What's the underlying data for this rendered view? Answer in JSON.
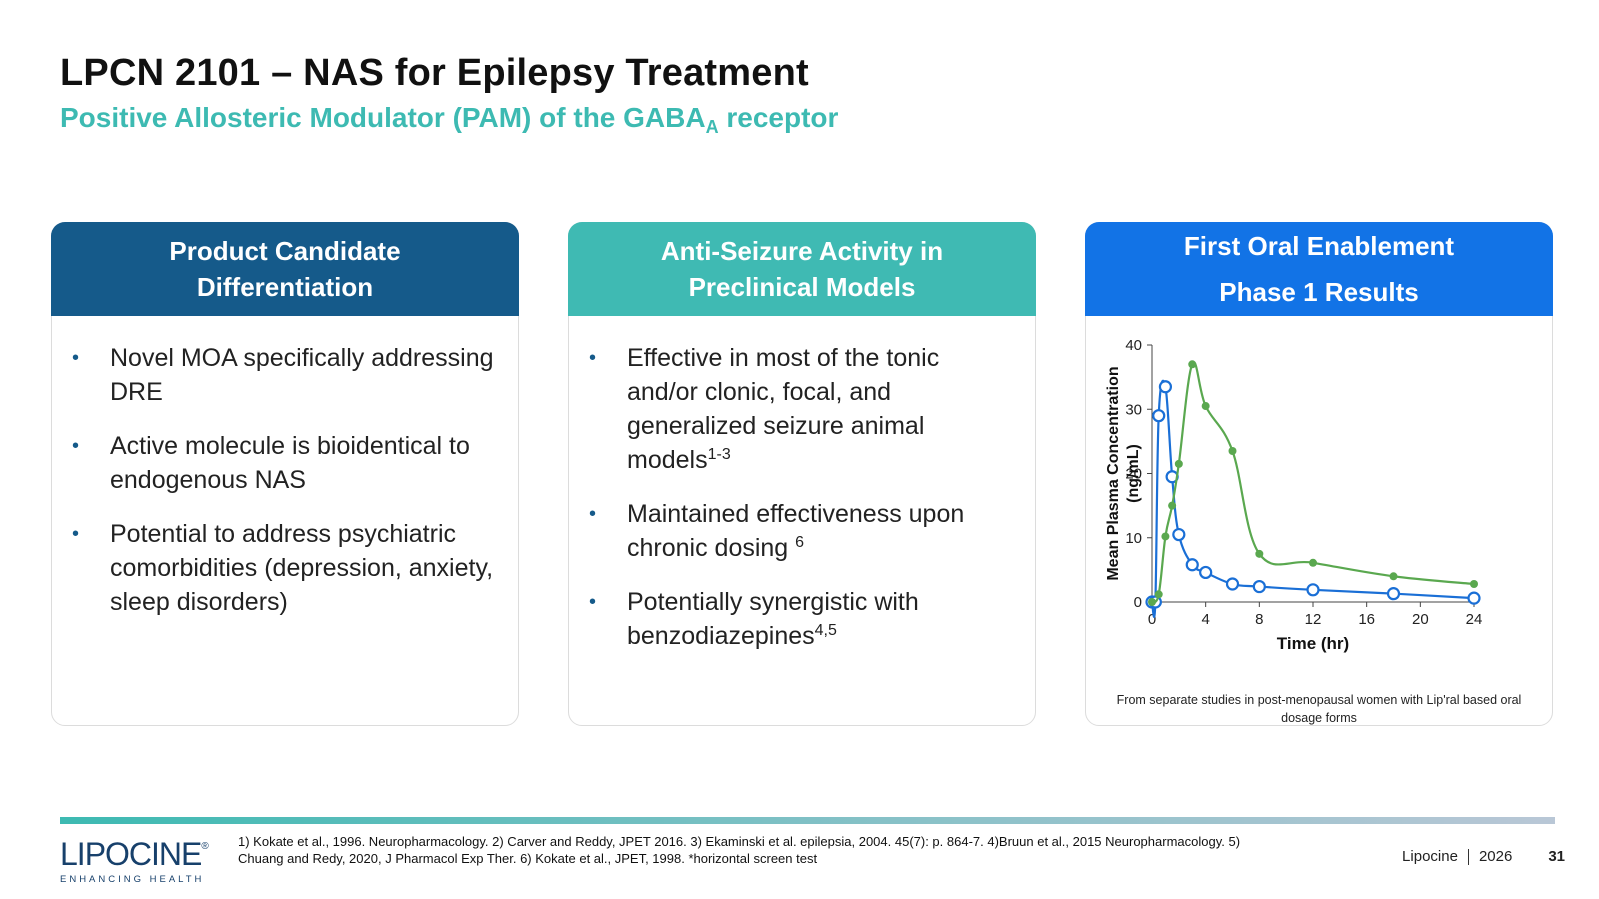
{
  "header": {
    "title": "LPCN 2101 – NAS for Epilepsy Treatment",
    "subtitle_main": "Positive Allosteric Modulator (PAM) of the GABA",
    "subtitle_sub": "A",
    "subtitle_end": " receptor"
  },
  "cards": [
    {
      "head_lines": [
        "Product Candidate",
        "Differentiation"
      ],
      "bullets": [
        {
          "text": "Novel MOA specifically addressing DRE"
        },
        {
          "text": "Active molecule is bioidentical to endogenous NAS"
        },
        {
          "text": "Potential to address psychiatric comorbidities (depression, anxiety, sleep disorders)"
        }
      ]
    },
    {
      "head_lines": [
        "Anti-Seizure Activity in",
        "Preclinical Models"
      ],
      "bullets": [
        {
          "text": "Effective in most of the tonic and/or clonic, focal, and generalized seizure animal models",
          "sup": "1-3"
        },
        {
          "text": "Maintained effectiveness upon chronic dosing ",
          "sup": "6"
        },
        {
          "text": "Potentially synergistic with benzodiazepines",
          "sup": "4,5"
        }
      ]
    },
    {
      "head_lines": [
        "First Oral Enablement",
        "Phase 1 Results"
      ],
      "note": "From separate studies in post-menopausal women with Lip'ral based oral dosage forms"
    }
  ],
  "chart_data": {
    "type": "line",
    "xlabel": "Time (hr)",
    "ylabel_lines": [
      "Mean Plasma Concentration",
      "(ng/mL)"
    ],
    "xlim": [
      0,
      24
    ],
    "ylim": [
      0,
      40
    ],
    "xticks": [
      0,
      4,
      8,
      12,
      16,
      20,
      24
    ],
    "yticks": [
      0,
      10,
      20,
      30,
      40
    ],
    "series": [
      {
        "name": "blue",
        "color": "#1a6fd6",
        "marker": "open-circle",
        "x": [
          0,
          0.25,
          0.5,
          1,
          1.5,
          2,
          3,
          4,
          6,
          8,
          12,
          18,
          24
        ],
        "y": [
          0,
          0,
          29,
          33.5,
          19.5,
          10.5,
          5.8,
          4.6,
          2.8,
          2.4,
          1.9,
          1.3,
          0.6
        ]
      },
      {
        "name": "green",
        "color": "#5aa84f",
        "marker": "filled-dot",
        "x": [
          0,
          0.5,
          1,
          1.5,
          2,
          3,
          4,
          6,
          8,
          12,
          18,
          24
        ],
        "y": [
          0,
          1.2,
          10.2,
          15,
          21.5,
          37,
          30.5,
          23.5,
          7.5,
          6.1,
          4,
          2.8
        ]
      }
    ]
  },
  "footer": {
    "logo": "LIPOCINE",
    "logo_tm": "®",
    "logo_tagline": "ENHANCING HEALTH",
    "references_line1": "1) Kokate et al., 1996. Neuropharmacology. 2) Carver and Reddy, JPET 2016. 3) Ekaminski et al. epilepsia, 2004. 45(7): p. 864-7. 4)Bruun et al., 2015 Neuropharmacology. 5)",
    "references_line2": "Chuang and Redy, 2020, J Pharmacol Exp Ther. 6) Kokate et al., JPET, 1998. *horizontal screen test",
    "company": "Lipocine",
    "year": "2026",
    "page": "31"
  }
}
